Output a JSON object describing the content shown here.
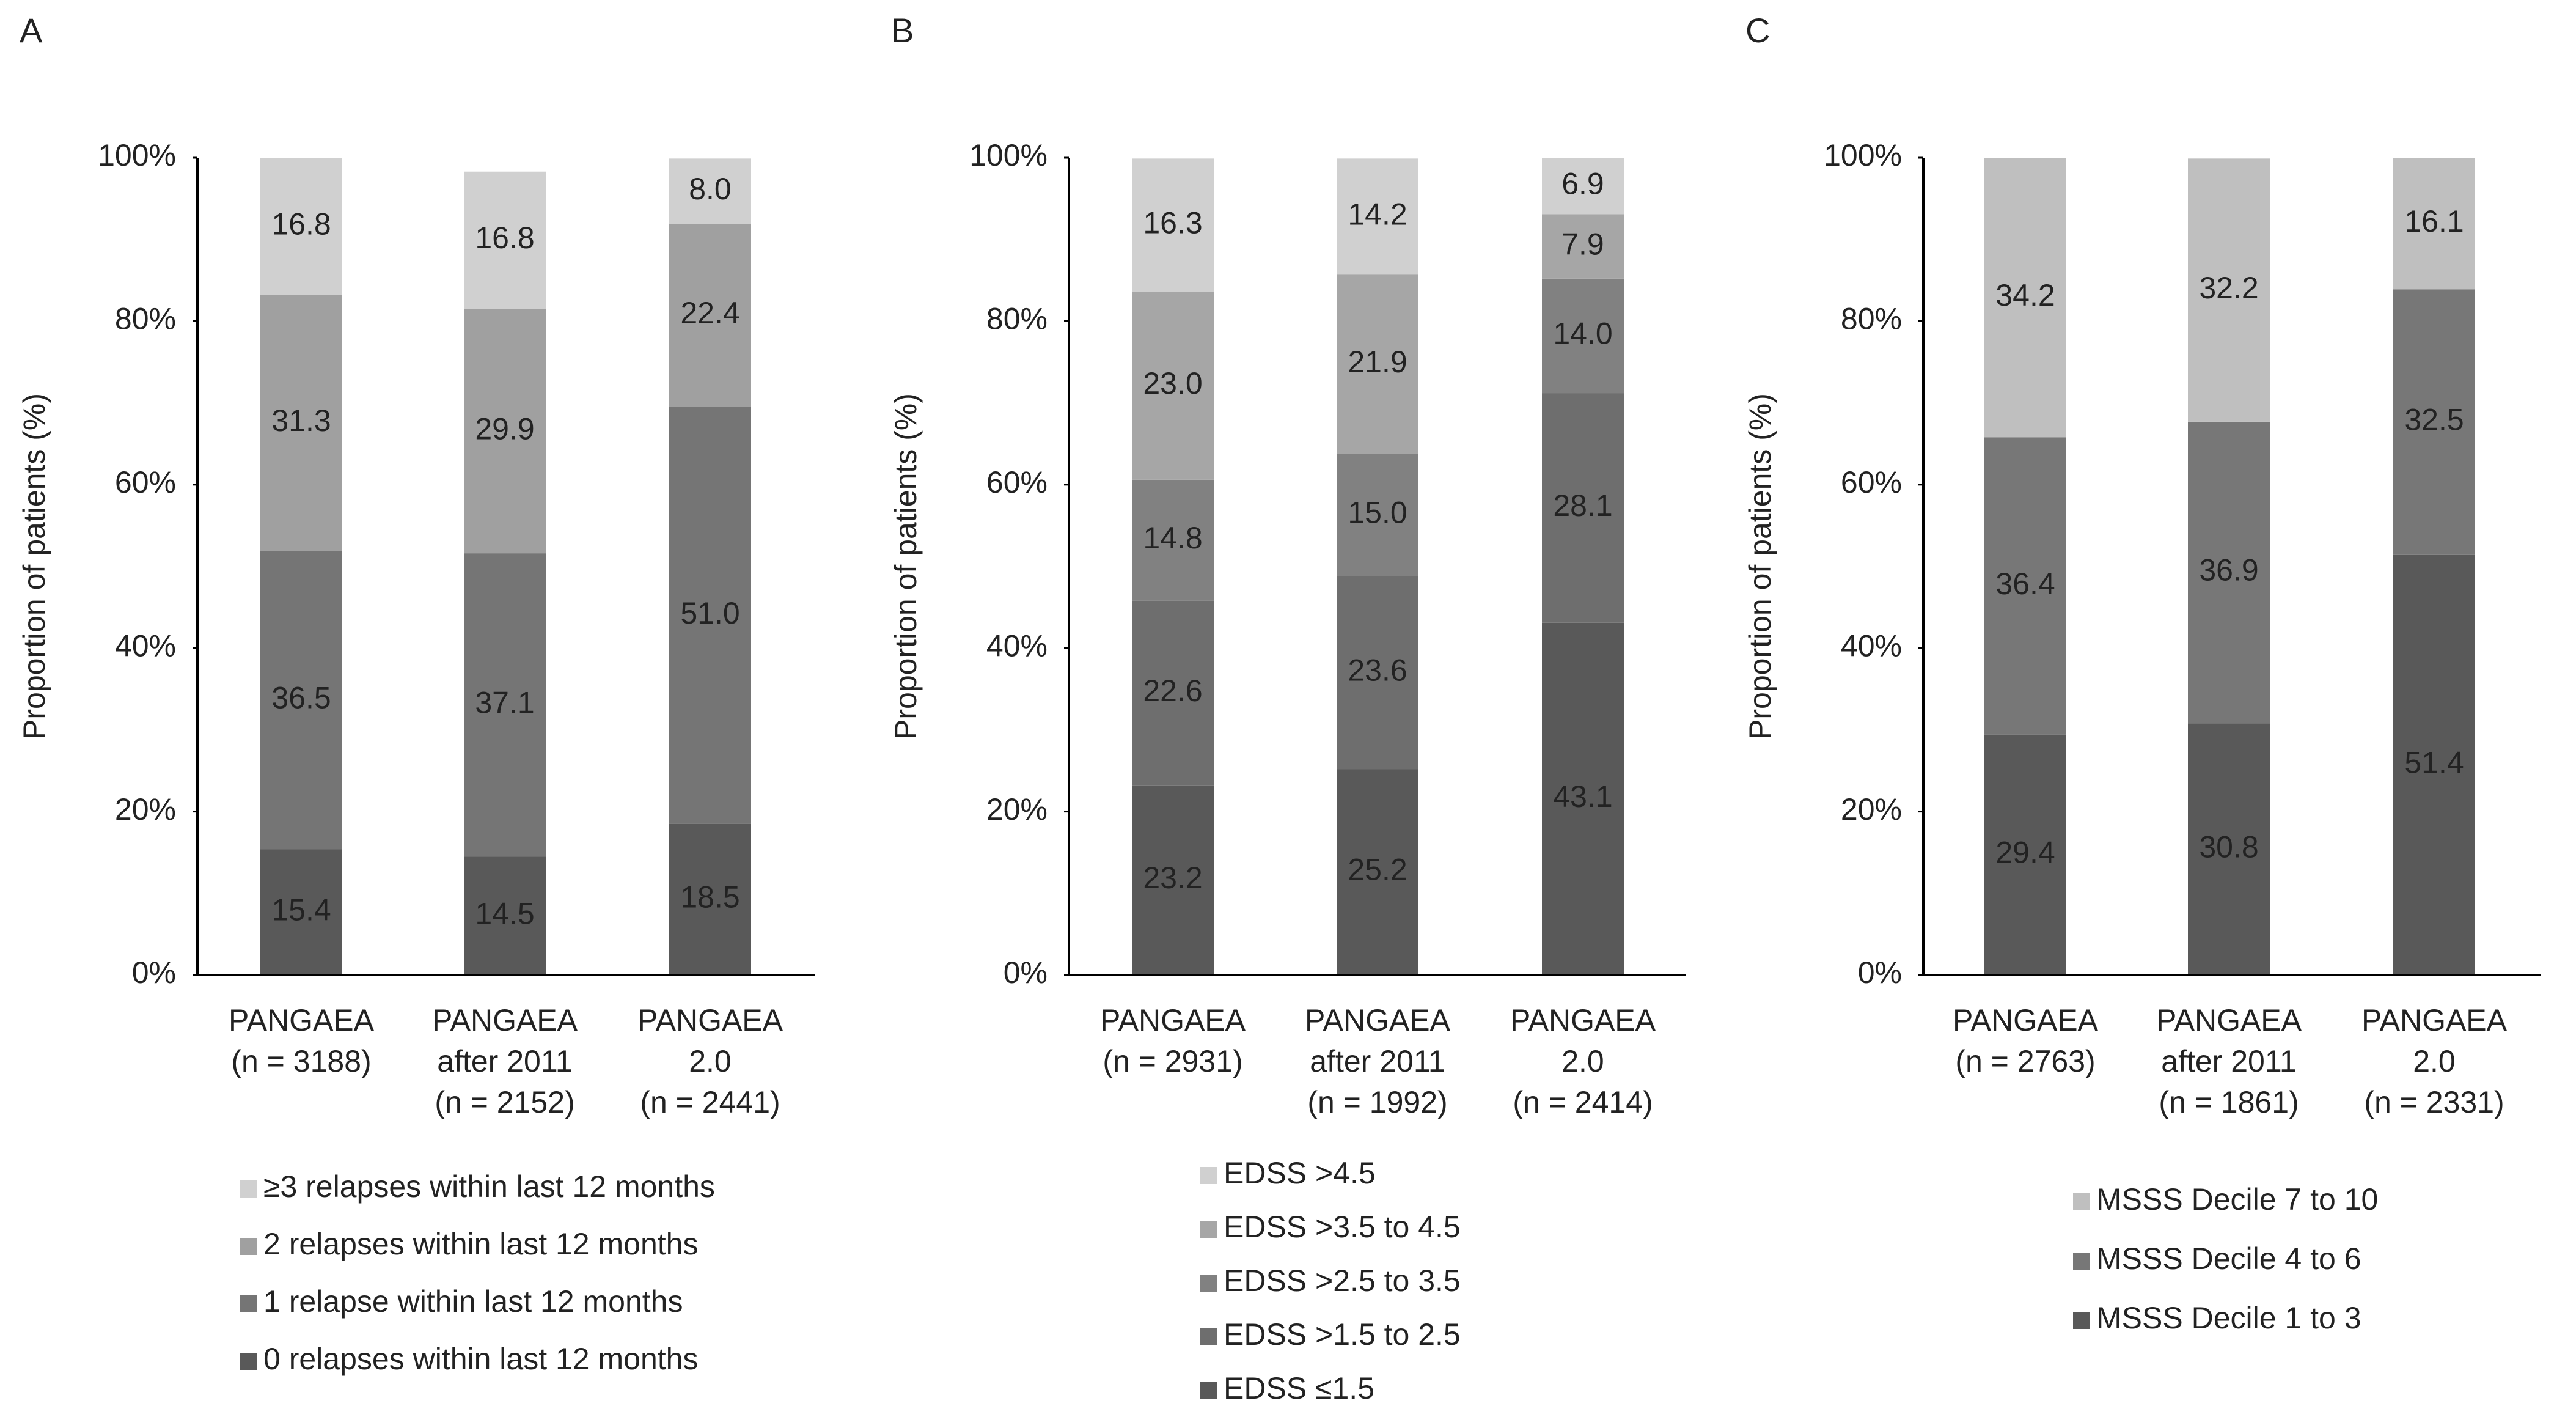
{
  "chart_data": [
    {
      "type": "stacked-bar",
      "panel": "A",
      "y_label": "Proportion of patients (%)",
      "categories": [
        [
          "PANGAEA",
          "(n = 3188)"
        ],
        [
          "PANGAEA",
          "after 2011",
          "(n = 2152)"
        ],
        [
          "PANGAEA",
          "2.0",
          "(n = 2441)"
        ]
      ],
      "ylim": [
        0,
        100
      ],
      "yticks": [
        {
          "value": 0,
          "label": "0%"
        },
        {
          "value": 20,
          "label": "20%"
        },
        {
          "value": 40,
          "label": "40%"
        },
        {
          "value": 60,
          "label": "60%"
        },
        {
          "value": 80,
          "label": "80%"
        },
        {
          "value": 100,
          "label": "100%"
        }
      ],
      "series": [
        {
          "name": "0 relapses within last 12 months",
          "color": "#595959",
          "values": [
            15.4,
            14.5,
            18.5
          ],
          "value_labels": [
            "15.4",
            "14.5",
            "18.5"
          ]
        },
        {
          "name": "1 relapse within last 12 months",
          "color": "#757575",
          "values": [
            36.5,
            37.1,
            51.0
          ],
          "value_labels": [
            "36.5",
            "37.1",
            "51.0"
          ]
        },
        {
          "name": "2 relapses within last 12 months",
          "color": "#a0a0a0",
          "values": [
            31.3,
            29.9,
            22.4
          ],
          "value_labels": [
            "31.3",
            "29.9",
            "22.4"
          ]
        },
        {
          "name": "≥3 relapses within last 12 months",
          "color": "#d0d0d0",
          "values": [
            16.8,
            16.8,
            8.0
          ],
          "value_labels": [
            "16.8",
            "16.8",
            "8.0"
          ]
        }
      ]
    },
    {
      "type": "stacked-bar",
      "panel": "B",
      "y_label": "Proportion of patients (%)",
      "categories": [
        [
          "PANGAEA",
          "(n = 2931)"
        ],
        [
          "PANGAEA",
          "after 2011",
          "(n = 1992)"
        ],
        [
          "PANGAEA",
          "2.0",
          "(n = 2414)"
        ]
      ],
      "ylim": [
        0,
        100
      ],
      "yticks": [
        {
          "value": 0,
          "label": "0%"
        },
        {
          "value": 20,
          "label": "20%"
        },
        {
          "value": 40,
          "label": "40%"
        },
        {
          "value": 60,
          "label": "60%"
        },
        {
          "value": 80,
          "label": "80%"
        },
        {
          "value": 100,
          "label": "100%"
        }
      ],
      "series": [
        {
          "name": "EDSS ≤1.5",
          "color": "#595959",
          "values": [
            23.2,
            25.2,
            43.1
          ],
          "value_labels": [
            "23.2",
            "25.2",
            "43.1"
          ]
        },
        {
          "name": "EDSS >1.5 to 2.5",
          "color": "#6e6e6e",
          "values": [
            22.6,
            23.6,
            28.1
          ],
          "value_labels": [
            "22.6",
            "23.6",
            "28.1"
          ]
        },
        {
          "name": "EDSS >2.5 to 3.5",
          "color": "#818181",
          "values": [
            14.8,
            15.0,
            14.0
          ],
          "value_labels": [
            "14.8",
            "15.0",
            "14.0"
          ]
        },
        {
          "name": "EDSS >3.5 to 4.5",
          "color": "#a6a6a6",
          "values": [
            23.0,
            21.9,
            7.9
          ],
          "value_labels": [
            "23.0",
            "21.9",
            "7.9"
          ]
        },
        {
          "name": "EDSS >4.5",
          "color": "#d0d0d0",
          "values": [
            16.3,
            14.2,
            6.9
          ],
          "value_labels": [
            "16.3",
            "14.2",
            "6.9"
          ]
        }
      ]
    },
    {
      "type": "stacked-bar",
      "panel": "C",
      "y_label": "Proportion of patients (%)",
      "categories": [
        [
          "PANGAEA",
          "(n = 2763)"
        ],
        [
          "PANGAEA",
          "after 2011",
          "(n = 1861)"
        ],
        [
          "PANGAEA",
          "2.0",
          "(n = 2331)"
        ]
      ],
      "ylim": [
        0,
        100
      ],
      "yticks": [
        {
          "value": 0,
          "label": "0%"
        },
        {
          "value": 20,
          "label": "20%"
        },
        {
          "value": 40,
          "label": "40%"
        },
        {
          "value": 60,
          "label": "60%"
        },
        {
          "value": 80,
          "label": "80%"
        },
        {
          "value": 100,
          "label": "100%"
        }
      ],
      "series": [
        {
          "name": "MSSS Decile 1 to 3",
          "color": "#595959",
          "values": [
            29.4,
            30.8,
            51.4
          ],
          "value_labels": [
            "29.4",
            "30.8",
            "51.4"
          ]
        },
        {
          "name": "MSSS Decile 4 to 6",
          "color": "#777777",
          "values": [
            36.4,
            36.9,
            32.5
          ],
          "value_labels": [
            "36.4",
            "36.9",
            "32.5"
          ]
        },
        {
          "name": "MSSS Decile 7 to 10",
          "color": "#bfbfbf",
          "values": [
            34.2,
            32.2,
            16.1
          ],
          "value_labels": [
            "34.2",
            "32.2",
            "16.1"
          ]
        }
      ]
    }
  ]
}
